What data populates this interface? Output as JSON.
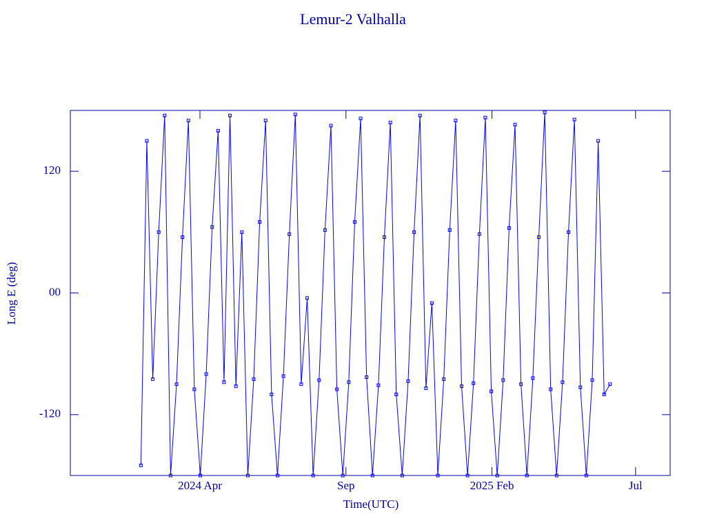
{
  "chart_data": {
    "type": "line",
    "title": "Lemur-2 Valhalla",
    "xlabel": "Time(UTC)",
    "ylabel": "Long E (deg)",
    "color": "#0000ff",
    "xlim": [
      2023.878,
      2025.595
    ],
    "xticks": [
      {
        "value": 2024.249,
        "label": "2024 Apr"
      },
      {
        "value": 2024.667,
        "label": "Sep"
      },
      {
        "value": 2025.085,
        "label": "2025 Feb"
      },
      {
        "value": 2025.496,
        "label": "Jul"
      }
    ],
    "ylim": [
      -180,
      180
    ],
    "yticks": [
      -120,
      {
        "value": 0,
        "label": "00"
      },
      120
    ],
    "x": [
      2024.08,
      2024.097,
      2024.114,
      2024.131,
      2024.148,
      2024.165,
      2024.182,
      2024.199,
      2024.216,
      2024.233,
      2024.25,
      2024.267,
      2024.284,
      2024.301,
      2024.318,
      2024.335,
      2024.352,
      2024.369,
      2024.386,
      2024.403,
      2024.42,
      2024.437,
      2024.454,
      2024.471,
      2024.488,
      2024.505,
      2024.522,
      2024.539,
      2024.556,
      2024.573,
      2024.59,
      2024.607,
      2024.624,
      2024.641,
      2024.658,
      2024.675,
      2024.692,
      2024.709,
      2024.726,
      2024.743,
      2024.76,
      2024.777,
      2024.794,
      2024.811,
      2024.828,
      2024.845,
      2024.862,
      2024.879,
      2024.896,
      2024.913,
      2024.93,
      2024.947,
      2024.964,
      2024.981,
      2024.998,
      2025.015,
      2025.032,
      2025.049,
      2025.066,
      2025.083,
      2025.1,
      2025.117,
      2025.134,
      2025.151,
      2025.168,
      2025.185,
      2025.202,
      2025.219,
      2025.236,
      2025.253,
      2025.27,
      2025.287,
      2025.304,
      2025.321,
      2025.338,
      2025.355,
      2025.372,
      2025.389,
      2025.406,
      2025.423
    ],
    "values": [
      -170,
      150,
      -85,
      60,
      175,
      -180,
      -90,
      55,
      170,
      -95,
      -180,
      -80,
      65,
      160,
      -88,
      175,
      -92,
      60,
      -180,
      -85,
      70,
      170,
      -100,
      -180,
      -82,
      58,
      176,
      -90,
      -5,
      -180,
      -86,
      62,
      165,
      -95,
      -180,
      -88,
      70,
      172,
      -83,
      -180,
      -91,
      55,
      168,
      -100,
      -180,
      -87,
      60,
      175,
      -94,
      -10,
      -180,
      -85,
      62,
      170,
      -92,
      -180,
      -89,
      58,
      173,
      -97,
      -180,
      -86,
      64,
      166,
      -90,
      -180,
      -84,
      55,
      178,
      -95,
      -180,
      -88,
      60,
      171,
      -93,
      -180,
      -86,
      150,
      -100,
      -90
    ]
  }
}
